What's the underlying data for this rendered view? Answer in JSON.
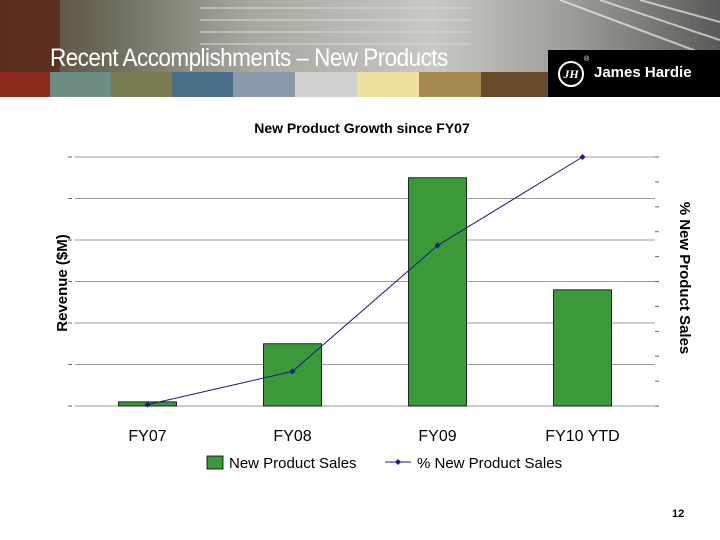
{
  "slide": {
    "title": "Recent Accomplishments – New Products",
    "page_number": "12"
  },
  "brand": {
    "name": "James Hardie",
    "mark": "JH",
    "registered": "®"
  },
  "colors": {
    "bar": "#3a9a3a",
    "line": "#1a1a8c",
    "gridline": "#999999",
    "header_band": [
      "#8b2a1a",
      "#6e8e85",
      "#7b7b52",
      "#4a6f8a",
      "#8a9aaa",
      "#d0d0d0",
      "#f0e0a0",
      "#a88a50",
      "#6a4a2a"
    ]
  },
  "chart_data": {
    "type": "bar",
    "title": "New Product Growth since FY07",
    "categories": [
      "FY07",
      "FY08",
      "FY09",
      "FY10 YTD"
    ],
    "ylabel": "Revenue ($M)",
    "y2label": "% New Product Sales",
    "y_tick_labels_visible": false,
    "ylim": [
      0,
      6
    ],
    "y2lim": [
      0,
      9
    ],
    "grid": true,
    "legend_position": "bottom",
    "series": [
      {
        "name": "New Product Sales",
        "type": "bar",
        "axis": "left",
        "values": [
          0.1,
          1.5,
          5.5,
          2.8
        ]
      },
      {
        "name": "% New Product Sales",
        "type": "line",
        "axis": "right",
        "values": [
          0.05,
          1.25,
          5.8,
          9.0
        ]
      }
    ]
  }
}
